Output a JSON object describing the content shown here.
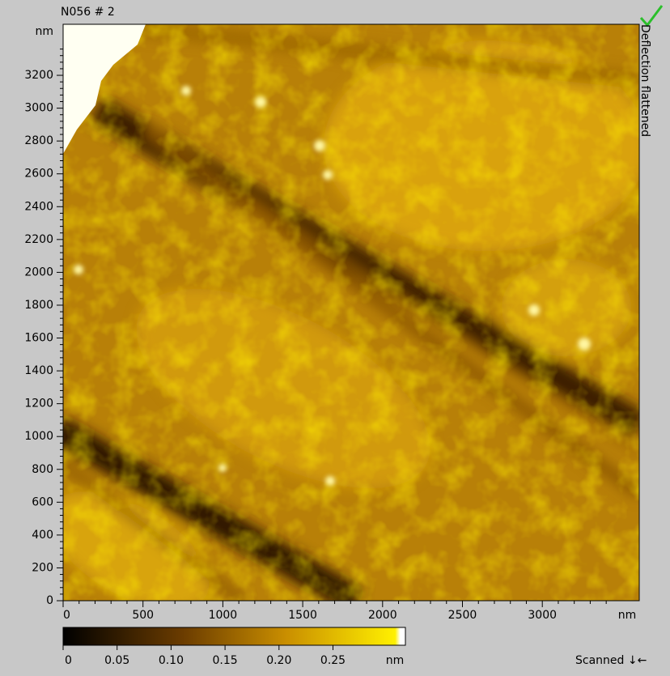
{
  "header": {
    "title": "N056 # 2",
    "channel": "Deflection flattened"
  },
  "y_axis": {
    "unit": "nm",
    "ticks": [
      0,
      200,
      400,
      600,
      800,
      1000,
      1200,
      1400,
      1600,
      1800,
      2000,
      2200,
      2400,
      2600,
      2800,
      3000,
      3200
    ]
  },
  "x_axis": {
    "unit": "nm",
    "ticks": [
      0,
      500,
      1000,
      1500,
      2000,
      2500,
      3000
    ]
  },
  "colorbar": {
    "unit": "nm",
    "ticks": [
      "0",
      "0.05",
      "0.10",
      "0.15",
      "0.20",
      "0.25"
    ]
  },
  "status": "Scanned ↓←"
}
